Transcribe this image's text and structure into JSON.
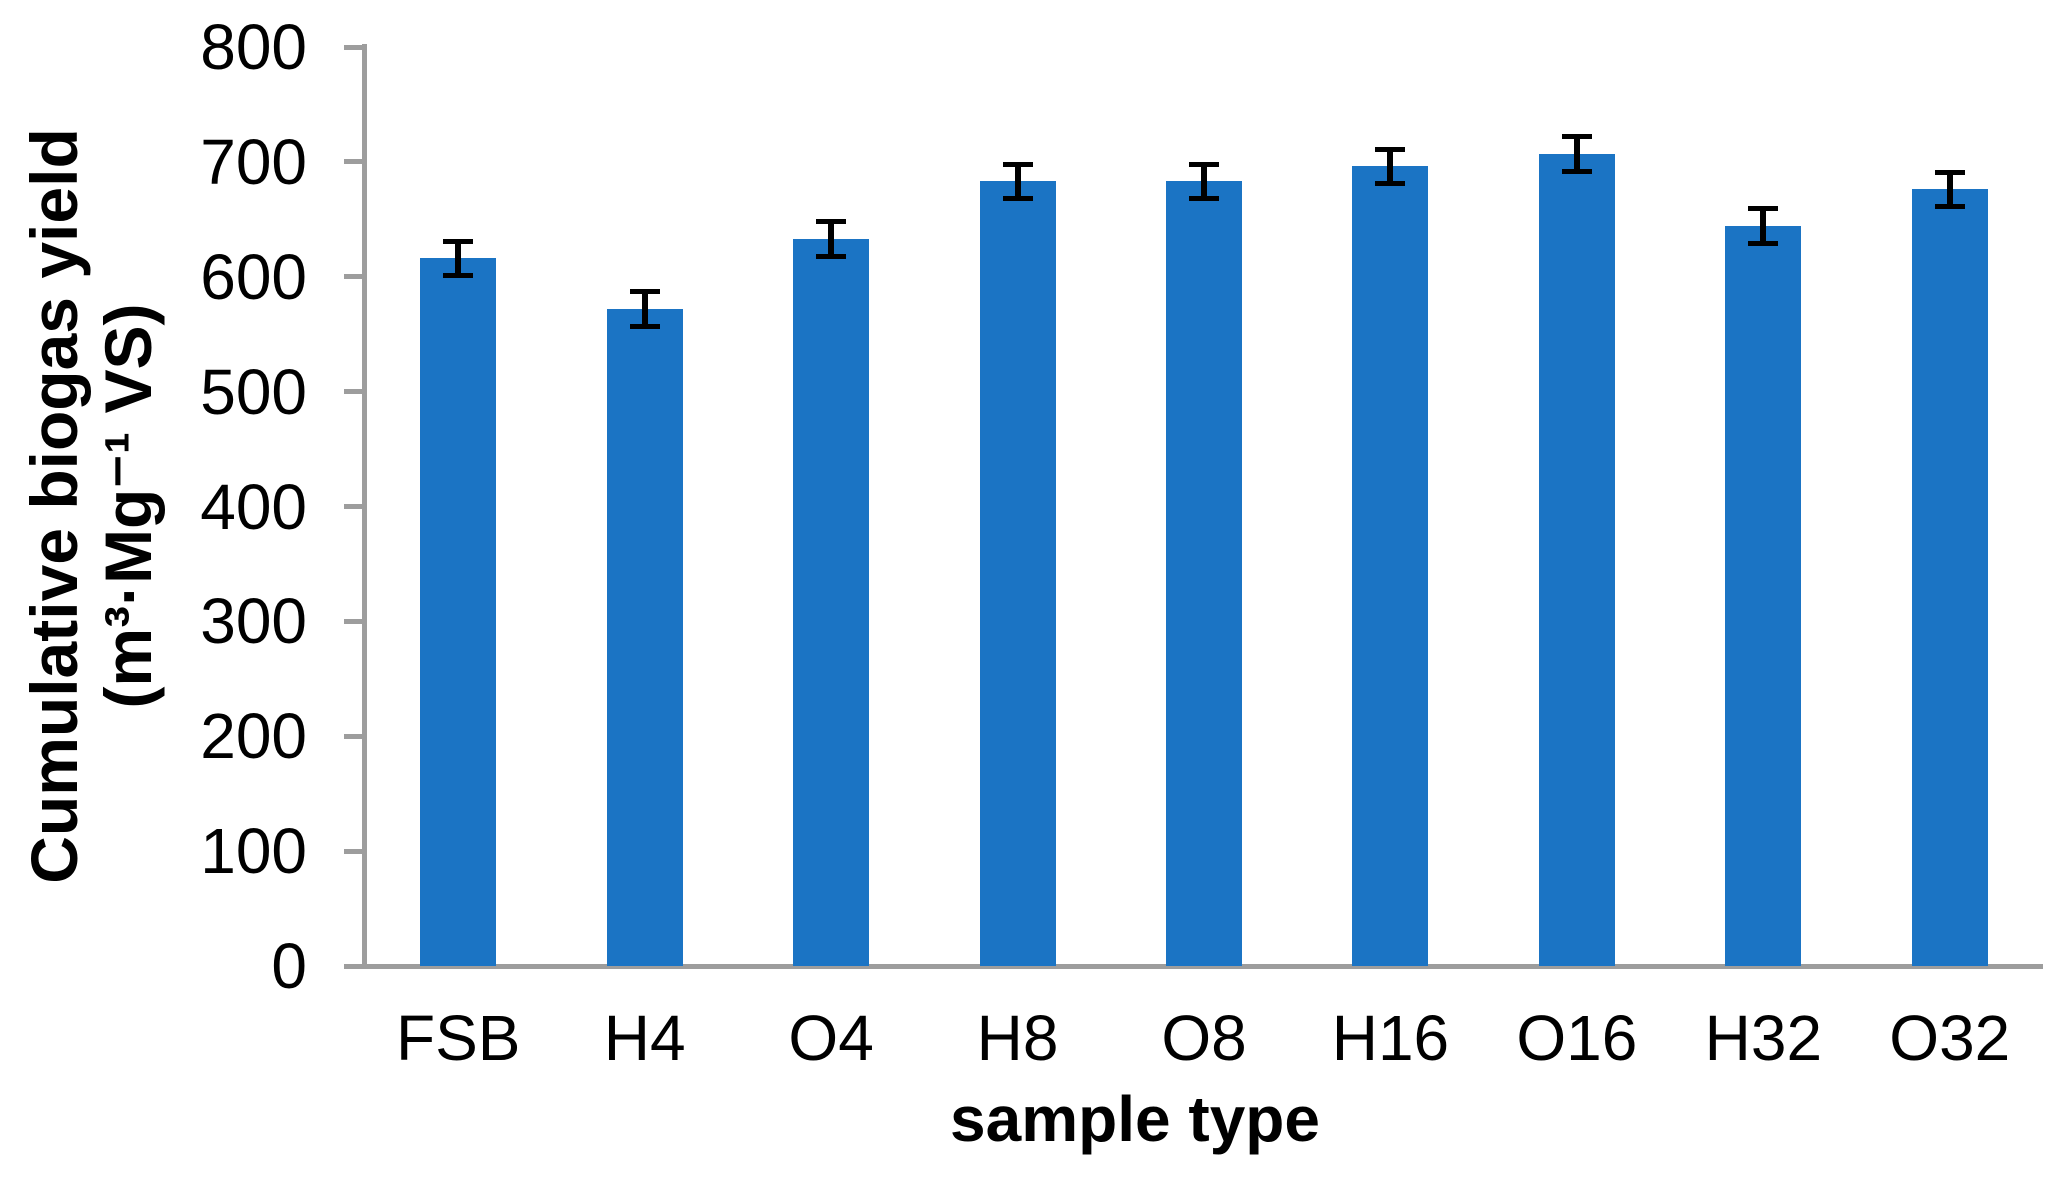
{
  "chart_data": {
    "type": "bar",
    "title": "",
    "xlabel": "sample type",
    "ylabel_line1": "Cumulative biogas yield",
    "ylabel_line2": "(m³·Mg⁻¹ VS)",
    "categories": [
      "FSB",
      "H4",
      "O4",
      "H8",
      "O8",
      "H16",
      "O16",
      "H32",
      "O32"
    ],
    "values": [
      616,
      572,
      633,
      683,
      683,
      696,
      707,
      644,
      676
    ],
    "error_bars": [
      15,
      15,
      15,
      15,
      15,
      15,
      15,
      15,
      15
    ],
    "ylim": [
      0,
      800
    ],
    "yticks": [
      800,
      700,
      600,
      500,
      400,
      300,
      200,
      100,
      0
    ],
    "grid": "off",
    "legend": "none",
    "bar_color": "#1b74c4",
    "axis_color": "#9d9d9d",
    "error_bar_color": "#000000",
    "text_color": "#000000",
    "background_color": "#ffffff"
  }
}
